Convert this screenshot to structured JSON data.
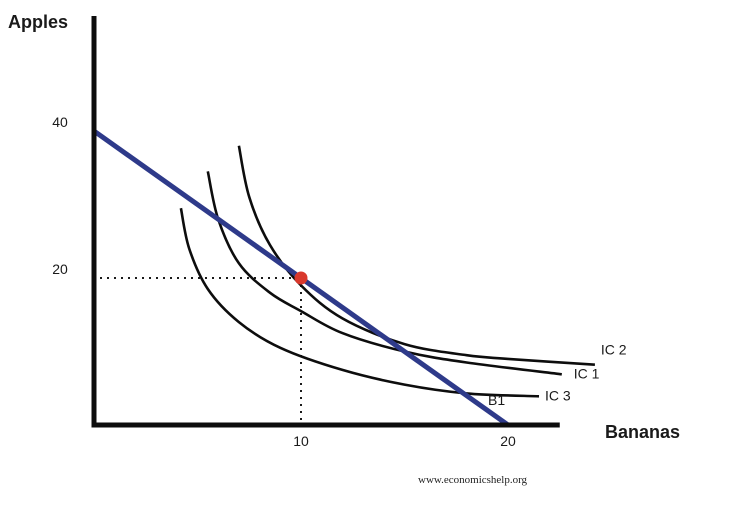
{
  "chart_data": {
    "type": "line",
    "xlabel": "Bananas",
    "ylabel": "Apples",
    "xlim": [
      0,
      22.5
    ],
    "ylim": [
      0,
      44
    ],
    "xticks": [
      10,
      20
    ],
    "yticks": [
      20,
      40
    ],
    "grid": false,
    "series": [
      {
        "name": "IC 2",
        "kind": "indifference",
        "x": [
          7.0,
          7.5,
          8.5,
          10.0,
          12.0,
          15.0,
          18.0,
          20.0,
          24.2
        ],
        "y": [
          38.0,
          31.0,
          24.5,
          19.0,
          14.5,
          11.0,
          9.5,
          9.0,
          8.2
        ]
      },
      {
        "name": "IC 1",
        "kind": "indifference",
        "x": [
          5.5,
          6.0,
          7.0,
          8.5,
          10.0,
          12.0,
          15.0,
          18.0,
          22.6
        ],
        "y": [
          34.5,
          28.0,
          22.0,
          18.0,
          15.5,
          12.5,
          10.0,
          8.5,
          6.9
        ]
      },
      {
        "name": "IC 3",
        "kind": "indifference",
        "x": [
          4.2,
          4.6,
          5.5,
          7.0,
          9.0,
          12.0,
          15.0,
          18.0,
          21.5
        ],
        "y": [
          29.5,
          24.0,
          18.5,
          14.0,
          10.5,
          7.5,
          5.5,
          4.3,
          3.9
        ]
      },
      {
        "name": "B1",
        "kind": "budget",
        "x": [
          0,
          20
        ],
        "y": [
          40,
          0
        ]
      }
    ],
    "optimum": {
      "x": 10,
      "y": 20
    },
    "labels": {
      "IC 2": "IC 2",
      "IC 1": "IC 1",
      "IC 3": "IC 3",
      "B1": "B1"
    },
    "colors": {
      "budget": "#2e3a8a",
      "curves": "#0d0d0d",
      "axes": "#0d0d0d",
      "optimum": "#d9382c",
      "guides": "#1a1a1a"
    }
  },
  "credit": "www.economicshelp.org"
}
